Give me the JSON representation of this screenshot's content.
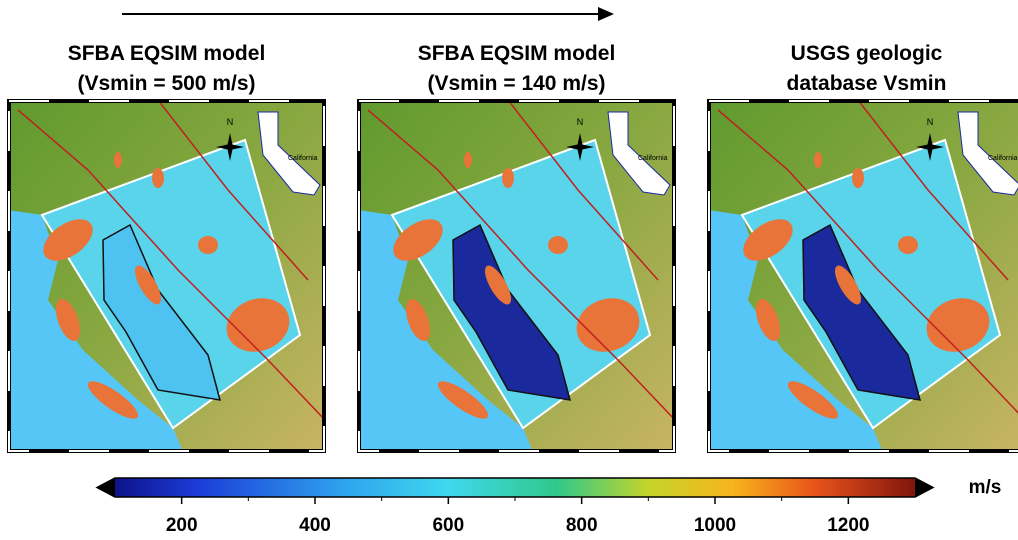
{
  "figure": {
    "panels": [
      {
        "title": [
          "SFBA EQSIM model",
          "(Vsmin = 500 m/s)"
        ],
        "compass": "N",
        "inset_label": "California",
        "bay_color": "#4ec3f2"
      },
      {
        "title": [
          "SFBA EQSIM model",
          "(Vsmin = 140 m/s)"
        ],
        "compass": "N",
        "inset_label": "California",
        "bay_color": "#1a2a9c"
      },
      {
        "title": [
          "USGS geologic",
          "database Vsmin"
        ],
        "compass": "N",
        "inset_label": "California",
        "bay_color": "#1a2a9c"
      }
    ],
    "colorbar": {
      "label": "m/s",
      "range": [
        100,
        1300
      ],
      "ticks": [
        200,
        400,
        600,
        800,
        1000,
        1200
      ],
      "minor_ticks": [
        300,
        500,
        700,
        900,
        1100
      ]
    }
  }
}
